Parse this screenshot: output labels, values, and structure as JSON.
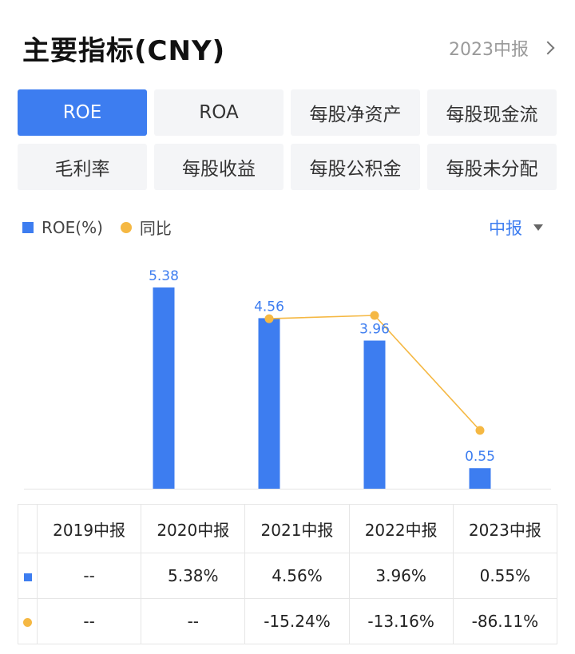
{
  "header": {
    "title": "主要指标(CNY)",
    "period_link": "2023中报"
  },
  "tabs": [
    {
      "label": "ROE",
      "active": true
    },
    {
      "label": "ROA",
      "active": false
    },
    {
      "label": "每股净资产",
      "active": false
    },
    {
      "label": "每股现金流",
      "active": false
    },
    {
      "label": "毛利率",
      "active": false
    },
    {
      "label": "每股收益",
      "active": false
    },
    {
      "label": "每股公积金",
      "active": false
    },
    {
      "label": "每股未分配",
      "active": false
    }
  ],
  "legend": {
    "bar_label": "ROE(%)",
    "line_label": "同比"
  },
  "period_select": "中报",
  "colors": {
    "accent": "#3d7df0",
    "line": "#f5b843",
    "negative": "#2aa56b"
  },
  "chart_data": {
    "type": "bar",
    "categories": [
      "2019中报",
      "2020中报",
      "2021中报",
      "2022中报",
      "2023中报"
    ],
    "series": [
      {
        "name": "ROE(%)",
        "type": "bar",
        "values": [
          null,
          5.38,
          4.56,
          3.96,
          0.55
        ],
        "labels": [
          "",
          "5.38",
          "4.56",
          "3.96",
          "0.55"
        ]
      },
      {
        "name": "同比",
        "type": "line",
        "values": [
          null,
          null,
          -15.24,
          -13.16,
          -86.11
        ]
      }
    ],
    "ylim": [
      0,
      5.38
    ],
    "grid": false,
    "legend_position": "top-left"
  },
  "table": {
    "headers": [
      "",
      "2019中报",
      "2020中报",
      "2021中报",
      "2022中报",
      "2023中报"
    ],
    "roe_row": [
      "--",
      "5.38%",
      "4.56%",
      "3.96%",
      "0.55%"
    ],
    "yoy_row": [
      "--",
      "--",
      "-15.24%",
      "-13.16%",
      "-86.11%"
    ]
  }
}
